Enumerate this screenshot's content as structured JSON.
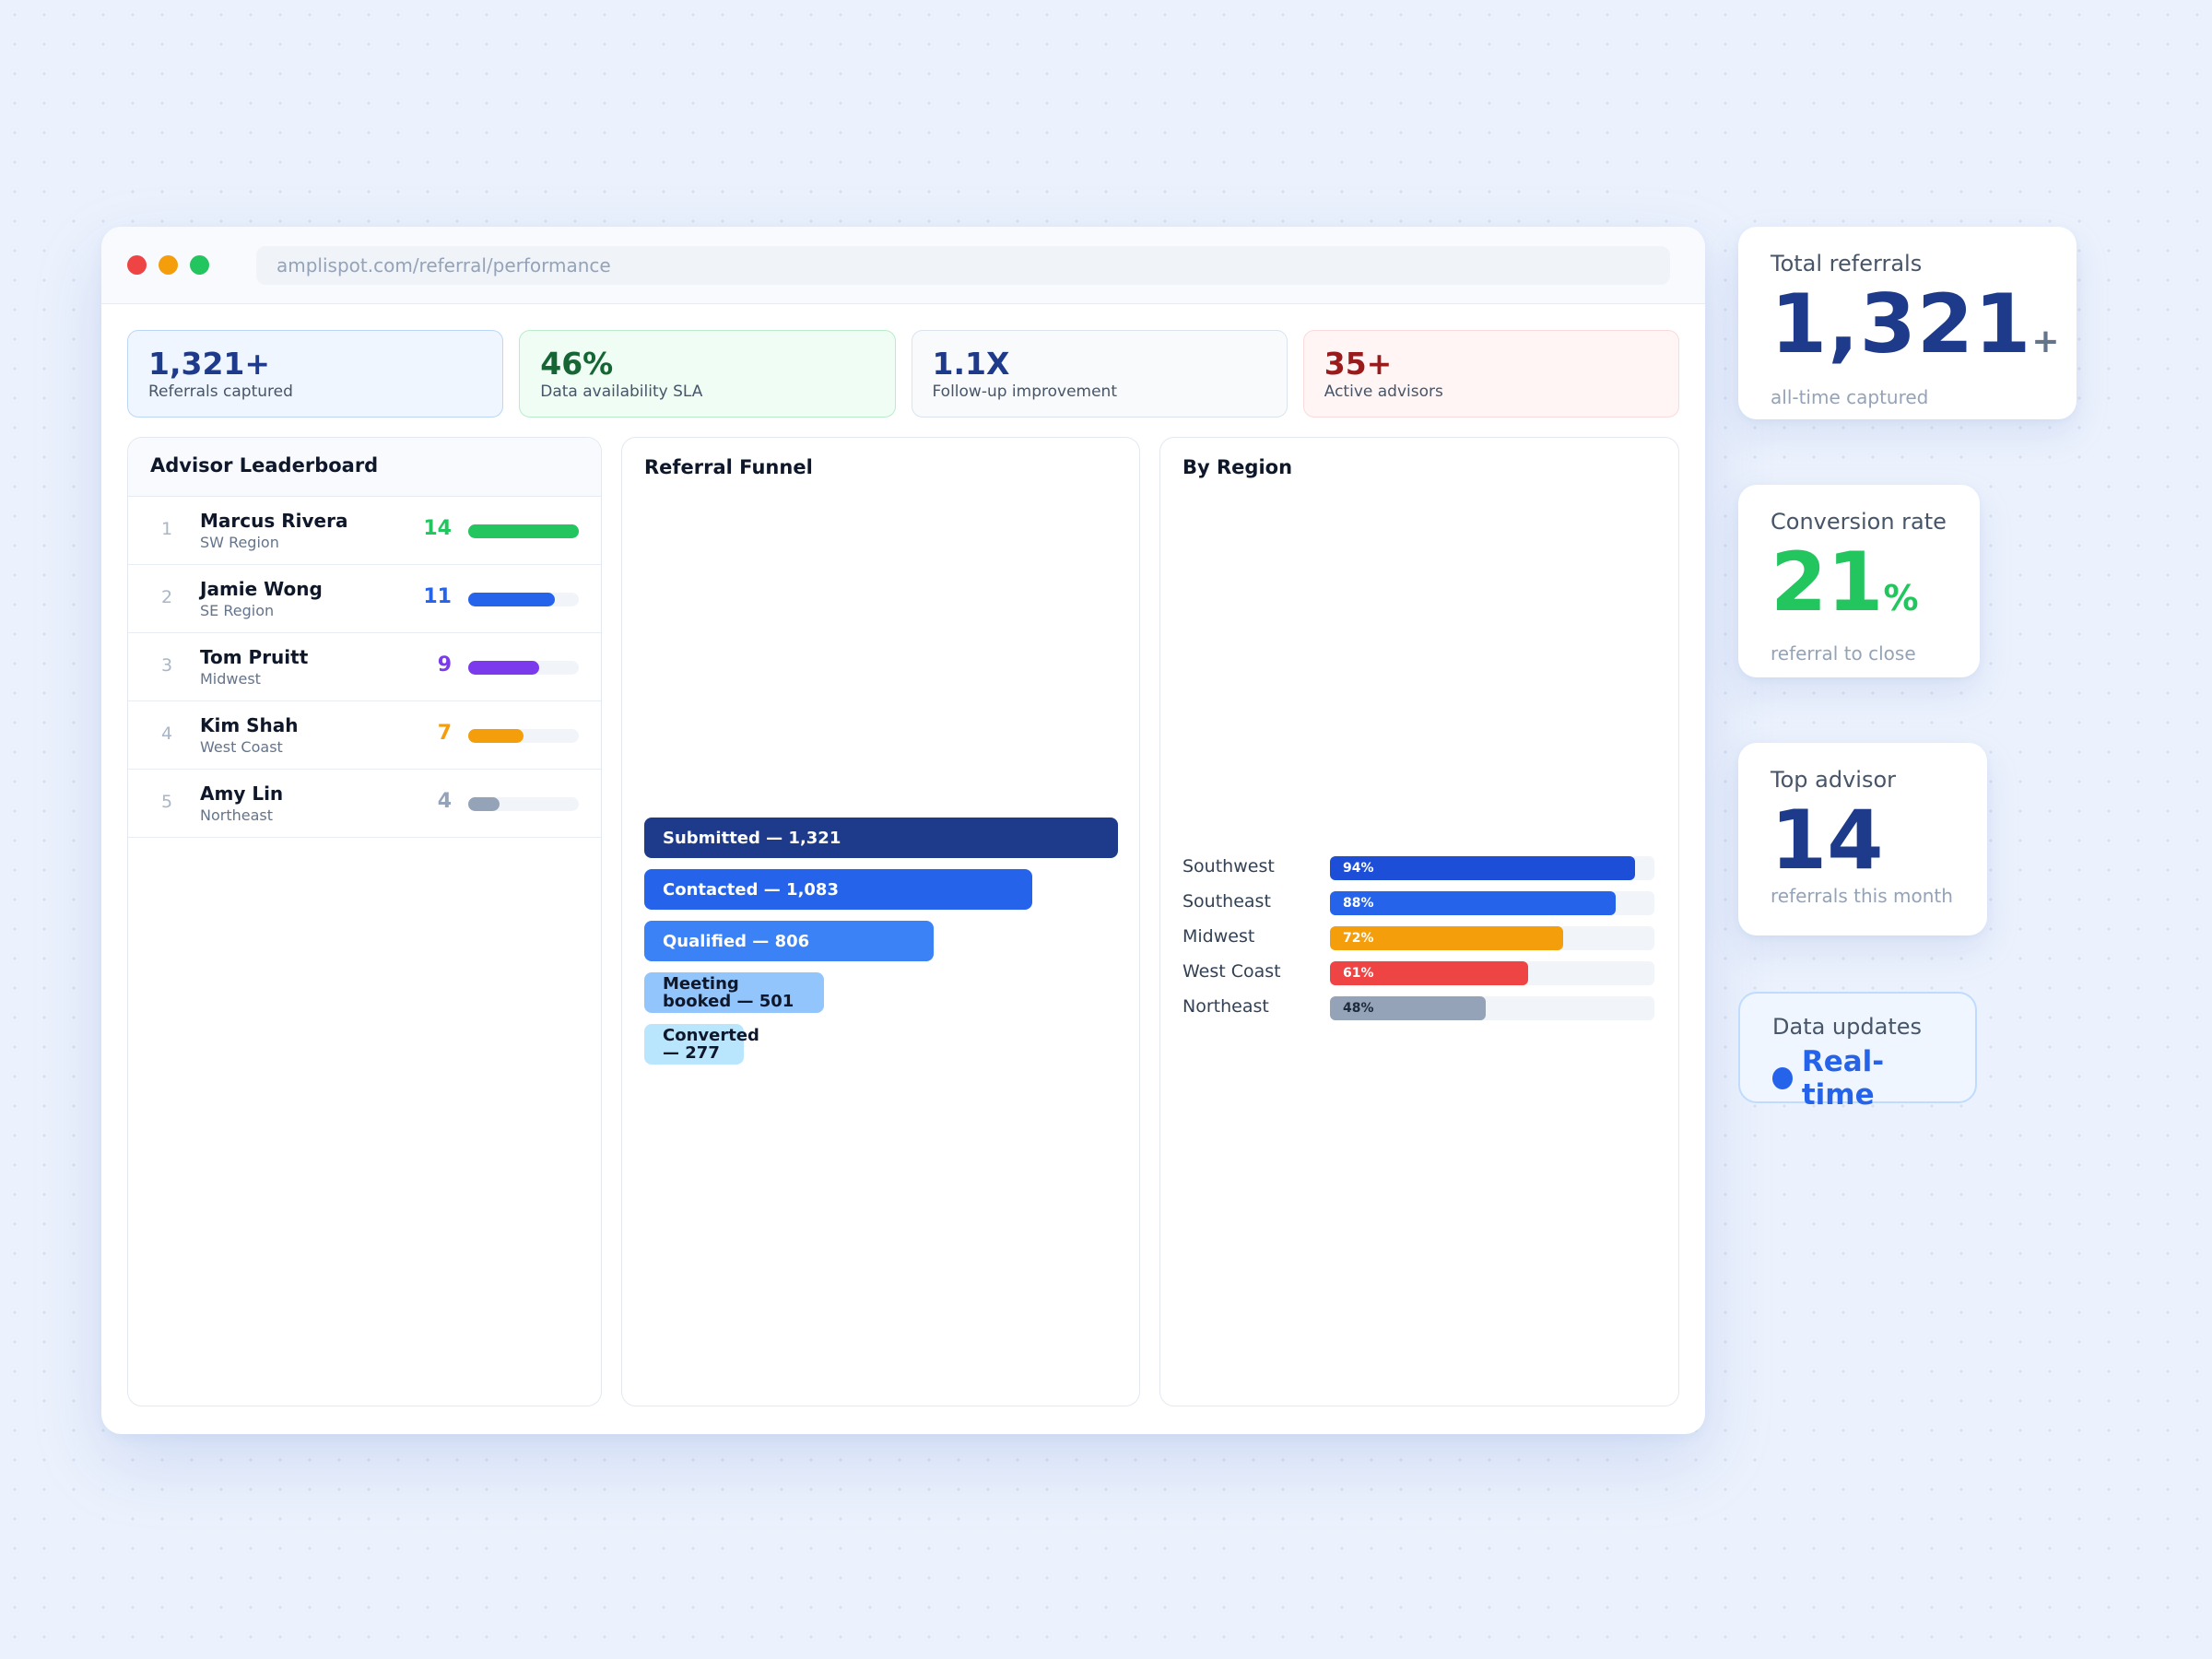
{
  "browser": {
    "url": "amplispot.com/referral/performance"
  },
  "kpis": [
    {
      "value": "1,321+",
      "label": "Referrals captured"
    },
    {
      "value": "46%",
      "label": "Data availability SLA"
    },
    {
      "value": "1.1X",
      "label": "Follow-up improvement"
    },
    {
      "value": "35+",
      "label": "Active advisors"
    }
  ],
  "leaderboard": {
    "title": "Advisor Leaderboard",
    "max_score": 14,
    "rows": [
      {
        "rank": "1",
        "name": "Marcus Rivera",
        "region": "SW Region",
        "score": 14,
        "color": "#22c55e"
      },
      {
        "rank": "2",
        "name": "Jamie Wong",
        "region": "SE Region",
        "score": 11,
        "color": "#2563eb"
      },
      {
        "rank": "3",
        "name": "Tom Pruitt",
        "region": "Midwest",
        "score": 9,
        "color": "#7c3aed"
      },
      {
        "rank": "4",
        "name": "Kim Shah",
        "region": "West Coast",
        "score": 7,
        "color": "#f59e0b"
      },
      {
        "rank": "5",
        "name": "Amy Lin",
        "region": "Northeast",
        "score": 4,
        "color": "#94a3b8"
      }
    ]
  },
  "funnel": {
    "title": "Referral Funnel",
    "stages": [
      {
        "label": "Submitted — 1,321",
        "value": 1321,
        "color": "#1e3a8a",
        "text": "light"
      },
      {
        "label": "Contacted — 1,083",
        "value": 1083,
        "color": "#2563eb",
        "text": "light"
      },
      {
        "label": "Qualified — 806",
        "value": 806,
        "color": "#3b82f6",
        "text": "light"
      },
      {
        "label": "Meeting booked — 501",
        "value": 501,
        "color": "#93c5fd",
        "text": "dark"
      },
      {
        "label": "Converted — 277",
        "value": 277,
        "color": "#bae6fd",
        "text": "dark"
      }
    ]
  },
  "region": {
    "title": "By Region",
    "rows": [
      {
        "name": "Southwest",
        "pct": 94,
        "label": "94%",
        "color": "#1d4ed8"
      },
      {
        "name": "Southeast",
        "pct": 88,
        "label": "88%",
        "color": "#2563eb"
      },
      {
        "name": "Midwest",
        "pct": 72,
        "label": "72%",
        "color": "#f59e0b"
      },
      {
        "name": "West Coast",
        "pct": 61,
        "label": "61%",
        "color": "#ef4444"
      },
      {
        "name": "Northeast",
        "pct": 48,
        "label": "48%",
        "color": "#94a3b8",
        "text": "dark"
      }
    ]
  },
  "cards": {
    "total": {
      "title": "Total referrals",
      "value": "1,321",
      "suffix": "+",
      "sub": "all-time captured"
    },
    "conversion": {
      "title": "Conversion rate",
      "value": "21",
      "suffix": "%",
      "sub": "referral to close"
    },
    "top": {
      "title": "Top advisor",
      "value": "14",
      "sub": "referrals this month"
    },
    "live": {
      "title": "Data updates",
      "status": "Real-time"
    }
  }
}
